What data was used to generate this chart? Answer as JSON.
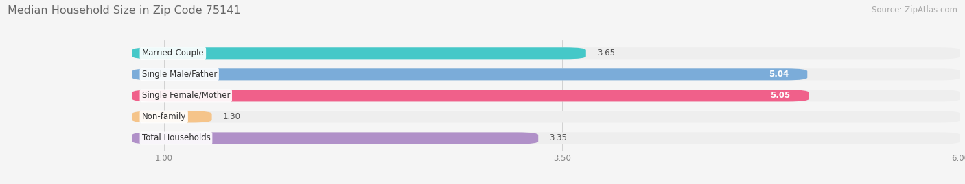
{
  "title": "Median Household Size in Zip Code 75141",
  "source": "Source: ZipAtlas.com",
  "categories": [
    "Married-Couple",
    "Single Male/Father",
    "Single Female/Mother",
    "Non-family",
    "Total Households"
  ],
  "values": [
    3.65,
    5.04,
    5.05,
    1.3,
    3.35
  ],
  "bar_colors": [
    "#45c8c8",
    "#7bacd9",
    "#f0608a",
    "#f5c48a",
    "#b090c8"
  ],
  "bar_bg_colors": [
    "#eeeeee",
    "#eeeeee",
    "#eeeeee",
    "#eeeeee",
    "#eeeeee"
  ],
  "value_inside": [
    false,
    true,
    true,
    false,
    false
  ],
  "xlim": [
    0,
    6.0
  ],
  "xstart": 0.8,
  "xticks": [
    1.0,
    3.5,
    6.0
  ],
  "title_fontsize": 11.5,
  "source_fontsize": 8.5,
  "label_fontsize": 8.5,
  "value_fontsize": 8.5,
  "tick_fontsize": 8.5,
  "bar_height": 0.55,
  "fig_bg": "#f5f5f5"
}
